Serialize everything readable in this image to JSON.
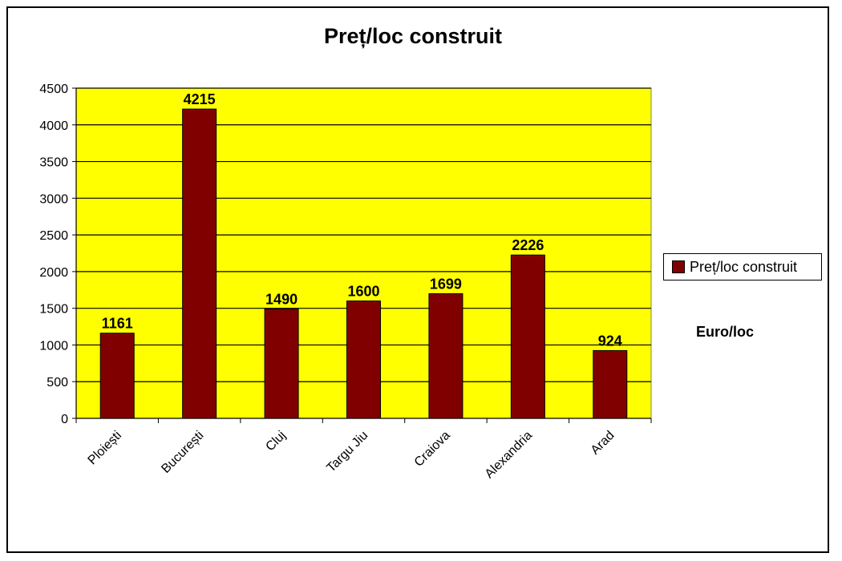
{
  "chart_data": {
    "type": "bar",
    "title": "Preț/loc construit",
    "categories": [
      "Ploiești",
      "București",
      "Cluj",
      "Targu Jiu",
      "Craiova",
      "Alexandria",
      "Arad"
    ],
    "series": [
      {
        "name": "Preț/loc construit",
        "values": [
          1161,
          4215,
          1490,
          1600,
          1699,
          2226,
          924
        ]
      }
    ],
    "data_labels": [
      "1161",
      "4215",
      "1490",
      "1600",
      "1699",
      "2226",
      "924"
    ],
    "y_ticks": [
      0,
      500,
      1000,
      1500,
      2000,
      2500,
      3000,
      3500,
      4000,
      4500
    ],
    "ylim": [
      0,
      4500
    ],
    "xlabel": "",
    "ylabel": "",
    "unit_label": "Euro/loc",
    "grid": true,
    "legend_position": "right",
    "colors": {
      "plot_background": "#ffff00",
      "bar": "#800000",
      "grid": "#000000"
    }
  }
}
